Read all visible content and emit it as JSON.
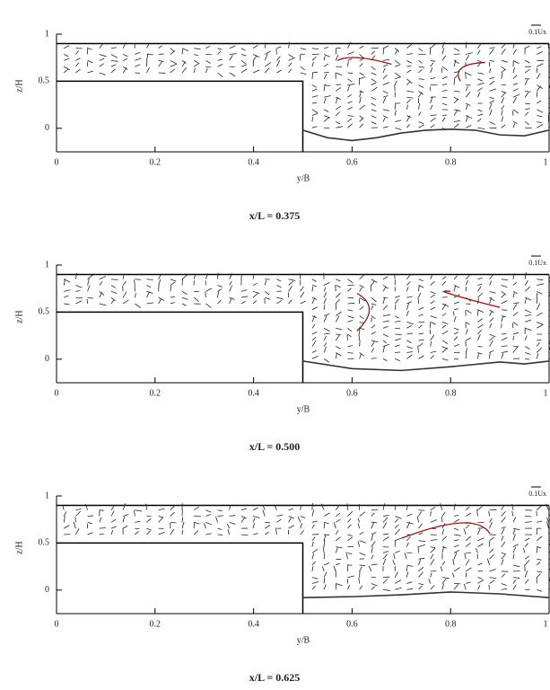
{
  "chart_data": [
    {
      "type": "line",
      "x_label": "y/B",
      "y_label": "z/H",
      "caption": "x/L = 0.375",
      "scale_label": "0.1Ux",
      "x": [
        0.5,
        0.55,
        0.6,
        0.65,
        0.7,
        0.75,
        0.8,
        0.85,
        0.9,
        0.95,
        1
      ],
      "values": [
        -0.02,
        -0.1,
        -0.13,
        -0.1,
        -0.05,
        -0.02,
        -0.01,
        -0.02,
        -0.07,
        -0.08,
        -0.02
      ],
      "color": "#333333",
      "xlim": [
        0,
        1
      ],
      "ylim": [
        -0.25,
        1
      ],
      "xticks": [
        0,
        0.2,
        0.4,
        0.6,
        0.8,
        1
      ],
      "yticks": [
        0,
        0.5,
        1
      ]
    },
    {
      "type": "line",
      "x_label": "y/B",
      "y_label": "z/H",
      "caption": "x/L = 0.500",
      "scale_label": "0.1Ux",
      "x": [
        0.5,
        0.6,
        0.7,
        0.8,
        0.9,
        0.95,
        1
      ],
      "values": [
        -0.02,
        -0.1,
        -0.12,
        -0.08,
        -0.03,
        -0.05,
        -0.02
      ],
      "color": "#333333",
      "xlim": [
        0,
        1
      ],
      "ylim": [
        -0.25,
        1
      ],
      "xticks": [
        0,
        0.2,
        0.4,
        0.6,
        0.8,
        1
      ],
      "yticks": [
        0,
        0.5,
        1
      ]
    },
    {
      "type": "line",
      "x_label": "y/B",
      "y_label": "z/H",
      "caption": "x/L = 0.625",
      "scale_label": "0.1Ux",
      "x": [
        0.5,
        0.6,
        0.7,
        0.8,
        0.9,
        1
      ],
      "values": [
        -0.08,
        -0.07,
        -0.05,
        -0.02,
        -0.04,
        -0.08
      ],
      "color": "#333333",
      "xlim": [
        0,
        1
      ],
      "ylim": [
        -0.25,
        1
      ],
      "xticks": [
        0,
        0.2,
        0.4,
        0.6,
        0.8,
        1
      ],
      "yticks": [
        0,
        0.5,
        1
      ]
    }
  ]
}
